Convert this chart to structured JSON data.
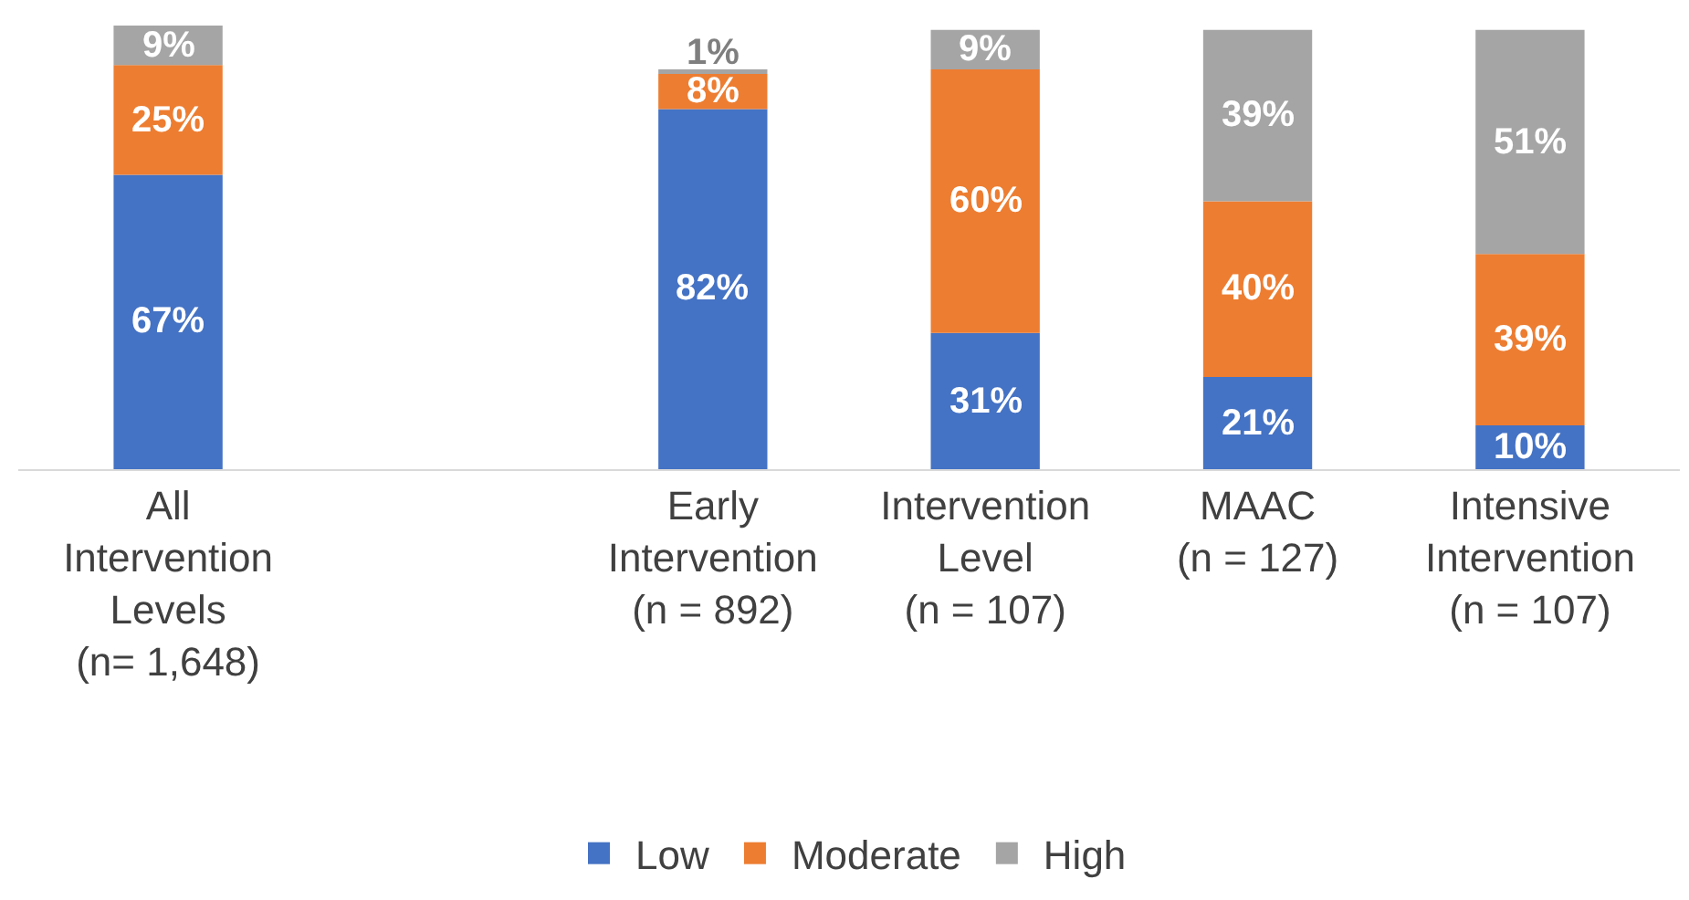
{
  "chart_data": {
    "type": "bar",
    "stacked": true,
    "legend": "bottom",
    "categories": [
      "All\nIntervention\nLevels\n(n= 1,648)",
      null,
      "Early\nIntervention\n(n = 892)",
      "Intervention\nLevel\n(n = 107)",
      "MAAC\n(n = 127)",
      "Intensive\nIntervention\n(n = 107)"
    ],
    "series": [
      {
        "name": "Low",
        "color": "#4472c4",
        "values": [
          67,
          null,
          82,
          31,
          21,
          10
        ],
        "value_labels": [
          "67%",
          null,
          "82%",
          "31%",
          "21%",
          "10%"
        ]
      },
      {
        "name": "Moderate",
        "color": "#ed7d31",
        "values": [
          25,
          null,
          8,
          60,
          40,
          39
        ],
        "value_labels": [
          "25%",
          null,
          "8%",
          "60%",
          "40%",
          "39%"
        ]
      },
      {
        "name": "High",
        "color": "#a5a5a5",
        "values": [
          9,
          null,
          1,
          9,
          39,
          51
        ],
        "value_labels": [
          "9%",
          null,
          "1%",
          "9%",
          "39%",
          "51%"
        ]
      }
    ]
  }
}
